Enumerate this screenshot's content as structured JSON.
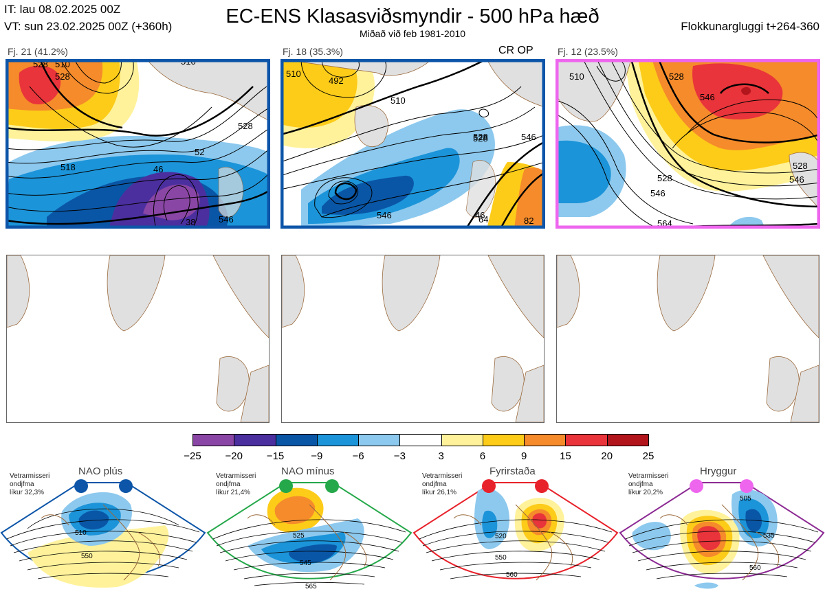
{
  "header": {
    "it": "IT: lau 08.02.2025 00Z",
    "vt": "VT: sun 23.02.2025 00Z  (+360h)",
    "title": "EC-ENS Klasasviðsmyndir - 500 hPa hæð",
    "subtitle": "Miðað við feb 1981-2010",
    "window": "Flokkunargluggi t+264-360"
  },
  "colors": {
    "blue_frame": "#0c55a8",
    "magenta_frame": "#ee66ee",
    "land": "#e0e0e0",
    "coast": "#9b6a3d"
  },
  "clusters": [
    {
      "label": "Fj. 21 (41.2%)",
      "extra": "",
      "frame": "#0c55a8",
      "contour_labels": [
        "528",
        "510",
        "528",
        "510",
        "528",
        "46",
        "52",
        "546",
        "38",
        "518"
      ]
    },
    {
      "label": "Fj. 18 (35.3%)",
      "extra": "CR OP",
      "frame": "#0c55a8",
      "contour_labels": [
        "510",
        "510",
        "492",
        "528",
        "528",
        "546",
        "546",
        "46",
        "64",
        "82"
      ]
    },
    {
      "label": "Fj. 12 (23.5%)",
      "extra": "",
      "frame": "#ee66ee",
      "contour_labels": [
        "528",
        "546",
        "528",
        "546",
        "564",
        "546",
        "528",
        "510"
      ]
    }
  ],
  "chart_data": {
    "type": "heatmap",
    "title": "EC-ENS Klasasviðsmyndir - 500 hPa hæð",
    "subtitle": "Miðað við feb 1981-2010",
    "colorbar": {
      "ticks": [
        "−25",
        "−20",
        "−15",
        "−9",
        "−6",
        "−3",
        "3",
        "6",
        "9",
        "15",
        "20",
        "25"
      ],
      "colors": [
        "#8a46a5",
        "#4b2f9e",
        "#0a56a6",
        "#1c94d9",
        "#8dc9ee",
        "#ffffff",
        "#fff29b",
        "#fdcc19",
        "#f58b2b",
        "#e8343a",
        "#b3151d"
      ]
    },
    "regimes": [
      {
        "name": "NAO plús",
        "info": [
          "Vetrarmisseri",
          "ondjfma",
          "líkur 32,3%"
        ],
        "dot_color": "#0c55a8",
        "frame": "#0c55a8",
        "contour_labels": [
          "510",
          "550"
        ]
      },
      {
        "name": "NAO mínus",
        "info": [
          "Vetrarmisseri",
          "ondjfma",
          "líkur 21,4%"
        ],
        "dot_color": "#25a84a",
        "frame": "#25a84a",
        "contour_labels": [
          "525",
          "545",
          "565"
        ]
      },
      {
        "name": "Fyrirstaða",
        "info": [
          "Vetrarmisseri",
          "ondjfma",
          "líkur 26,1%"
        ],
        "dot_color": "#e8222b",
        "frame": "#e8222b",
        "contour_labels": [
          "520",
          "550",
          "560"
        ]
      },
      {
        "name": "Hryggur",
        "info": [
          "Vetrarmisseri",
          "ondjfma",
          "líkur 20,2%"
        ],
        "dot_color": "#ee66ee",
        "frame": "#8c2a94",
        "contour_labels": [
          "505",
          "535",
          "560"
        ]
      }
    ]
  }
}
